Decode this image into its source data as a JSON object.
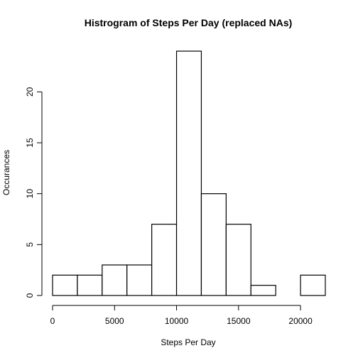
{
  "chart_data": {
    "type": "bar",
    "title": "Histrogram of Steps Per Day (replaced NAs)",
    "xlabel": "Steps Per Day",
    "ylabel": "Occurances",
    "bins": [
      {
        "start": 0,
        "end": 2000,
        "count": 2
      },
      {
        "start": 2000,
        "end": 4000,
        "count": 2
      },
      {
        "start": 4000,
        "end": 6000,
        "count": 3
      },
      {
        "start": 6000,
        "end": 8000,
        "count": 3
      },
      {
        "start": 8000,
        "end": 10000,
        "count": 7
      },
      {
        "start": 10000,
        "end": 12000,
        "count": 24
      },
      {
        "start": 12000,
        "end": 14000,
        "count": 10
      },
      {
        "start": 14000,
        "end": 16000,
        "count": 7
      },
      {
        "start": 16000,
        "end": 18000,
        "count": 1
      },
      {
        "start": 18000,
        "end": 20000,
        "count": 0
      },
      {
        "start": 20000,
        "end": 22000,
        "count": 2
      }
    ],
    "xlim": [
      0,
      22000
    ],
    "ylim": [
      0,
      24
    ],
    "xticks": [
      0,
      5000,
      10000,
      15000,
      20000
    ],
    "yticks": [
      0,
      5,
      10,
      15,
      20
    ],
    "grid": false
  }
}
